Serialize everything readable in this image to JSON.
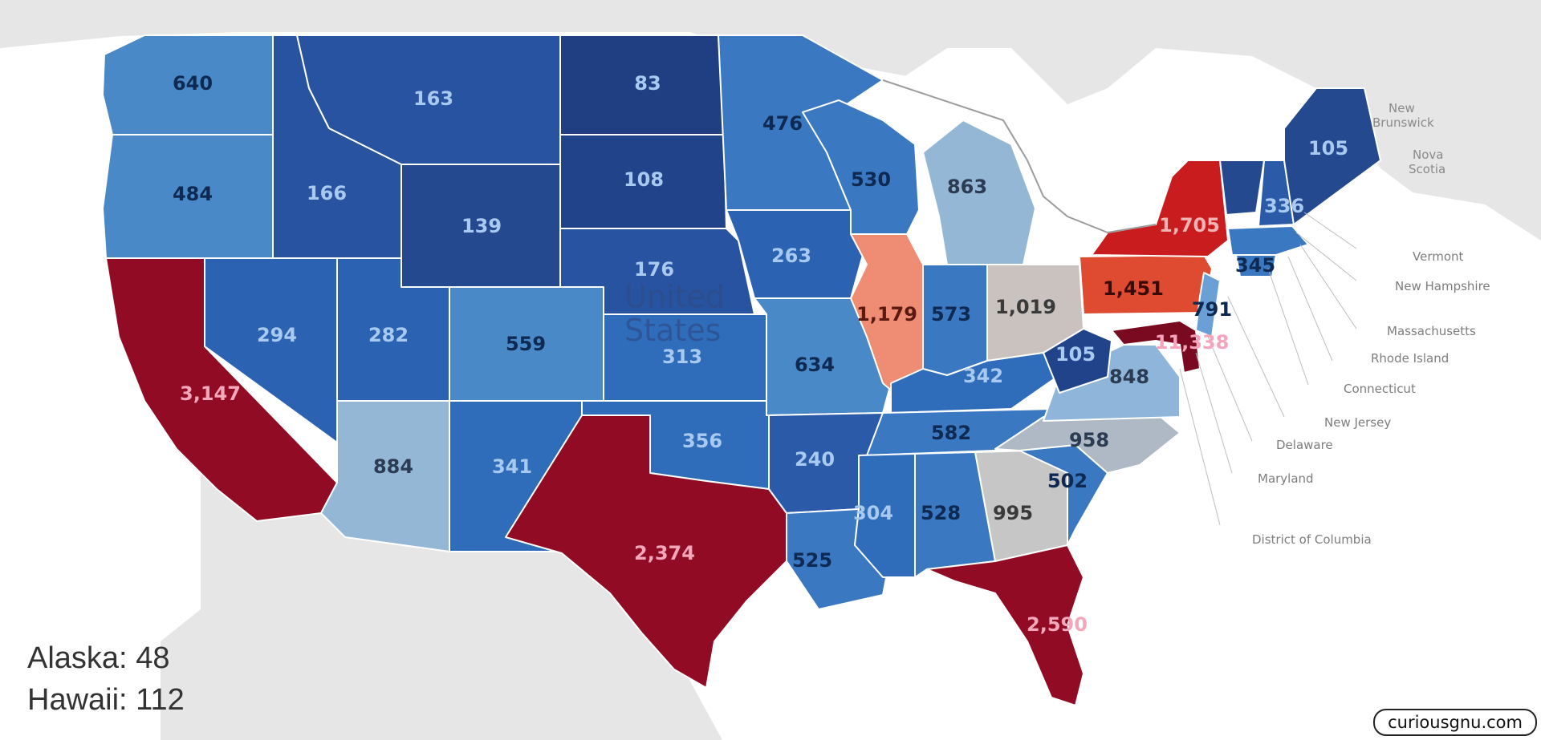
{
  "title": "",
  "map": {
    "country_label": [
      "United",
      "States"
    ],
    "background_labels": [
      {
        "id": "new-brunswick",
        "lines": [
          "New",
          "Brunswick"
        ]
      },
      {
        "id": "nova-scotia",
        "lines": [
          "Nova",
          "Scotia"
        ]
      }
    ],
    "callout_labels": [
      "Vermont",
      "New Hampshire",
      "Massachusetts",
      "Rhode Island",
      "Connecticut",
      "New Jersey",
      "Delaware",
      "Maryland",
      "District of Columbia"
    ]
  },
  "states": [
    {
      "id": "wa",
      "value": 640,
      "label": "640",
      "fill": "#4a89c7",
      "text": "#0e2a52"
    },
    {
      "id": "or",
      "value": 484,
      "label": "484",
      "fill": "#4a89c7",
      "text": "#0e2a52"
    },
    {
      "id": "ca",
      "value": 3147,
      "label": "3,147",
      "fill": "#920b24",
      "text": "#f2a7ba"
    },
    {
      "id": "id",
      "value": 166,
      "label": "166",
      "fill": "#2853a0",
      "text": "#a8c9f0"
    },
    {
      "id": "mt",
      "value": 163,
      "label": "163",
      "fill": "#2853a0",
      "text": "#a8c9f0"
    },
    {
      "id": "nv",
      "value": 294,
      "label": "294",
      "fill": "#2b63b2",
      "text": "#a8c9f0"
    },
    {
      "id": "ut",
      "value": 282,
      "label": "282",
      "fill": "#2b63b2",
      "text": "#a8c9f0"
    },
    {
      "id": "az",
      "value": 884,
      "label": "884",
      "fill": "#94b7d6",
      "text": "#2b3c52"
    },
    {
      "id": "wy",
      "value": 139,
      "label": "139",
      "fill": "#24498f",
      "text": "#a8c9f0"
    },
    {
      "id": "co",
      "value": 559,
      "label": "559",
      "fill": "#4a89c7",
      "text": "#0e2a52"
    },
    {
      "id": "nm",
      "value": 341,
      "label": "341",
      "fill": "#2f6dba",
      "text": "#a8c9f0"
    },
    {
      "id": "nd",
      "value": 83,
      "label": "83",
      "fill": "#1f3f82",
      "text": "#a8c9f0"
    },
    {
      "id": "sd",
      "value": 108,
      "label": "108",
      "fill": "#21438a",
      "text": "#a8c9f0"
    },
    {
      "id": "ne",
      "value": 176,
      "label": "176",
      "fill": "#2853a0",
      "text": "#a8c9f0"
    },
    {
      "id": "ks",
      "value": 313,
      "label": "313",
      "fill": "#2f6dba",
      "text": "#a8c9f0"
    },
    {
      "id": "ok",
      "value": 356,
      "label": "356",
      "fill": "#2f6dba",
      "text": "#a8c9f0"
    },
    {
      "id": "tx",
      "value": 2374,
      "label": "2,374",
      "fill": "#920b24",
      "text": "#f2a7ba"
    },
    {
      "id": "mn",
      "value": 476,
      "label": "476",
      "fill": "#3a78c2",
      "text": "#0e2a52"
    },
    {
      "id": "ia",
      "value": 263,
      "label": "263",
      "fill": "#2b63b2",
      "text": "#a8c9f0"
    },
    {
      "id": "mo",
      "value": 634,
      "label": "634",
      "fill": "#4a89c7",
      "text": "#0e2a52"
    },
    {
      "id": "ar",
      "value": 240,
      "label": "240",
      "fill": "#2b5aa8",
      "text": "#a8c9f0"
    },
    {
      "id": "la",
      "value": 525,
      "label": "525",
      "fill": "#3a78c2",
      "text": "#0e2a52"
    },
    {
      "id": "wi",
      "value": 530,
      "label": "530",
      "fill": "#3a78c2",
      "text": "#0e2a52"
    },
    {
      "id": "il",
      "value": 1179,
      "label": "1,179",
      "fill": "#ee8c74",
      "text": "#5a1a10"
    },
    {
      "id": "mi",
      "value": 863,
      "label": "863",
      "fill": "#94b7d6",
      "text": "#2b3c52"
    },
    {
      "id": "in",
      "value": 573,
      "label": "573",
      "fill": "#3a78c2",
      "text": "#0e2a52"
    },
    {
      "id": "oh",
      "value": 1019,
      "label": "1,019",
      "fill": "#c9c2bf",
      "text": "#3a3a3a"
    },
    {
      "id": "ky",
      "value": 342,
      "label": "342",
      "fill": "#2f6dba",
      "text": "#a8c9f0"
    },
    {
      "id": "tn",
      "value": 582,
      "label": "582",
      "fill": "#3a78c2",
      "text": "#0e2a52"
    },
    {
      "id": "ms",
      "value": 304,
      "label": "304",
      "fill": "#2f6dba",
      "text": "#a8c9f0"
    },
    {
      "id": "al",
      "value": 528,
      "label": "528",
      "fill": "#3a78c2",
      "text": "#0e2a52"
    },
    {
      "id": "ga",
      "value": 995,
      "label": "995",
      "fill": "#c6c6c6",
      "text": "#3a3a3a"
    },
    {
      "id": "fl",
      "value": 2590,
      "label": "2,590",
      "fill": "#920b24",
      "text": "#f2a7ba"
    },
    {
      "id": "sc",
      "value": 502,
      "label": "502",
      "fill": "#3a78c2",
      "text": "#0e2a52"
    },
    {
      "id": "nc",
      "value": 958,
      "label": "958",
      "fill": "#aeb9c5",
      "text": "#2b3c52"
    },
    {
      "id": "va",
      "value": 848,
      "label": "848",
      "fill": "#8fb5da",
      "text": "#2b3c52"
    },
    {
      "id": "wv",
      "value": 105,
      "label": "105",
      "fill": "#21438a",
      "text": "#a8c9f0"
    },
    {
      "id": "pa",
      "value": 1451,
      "label": "1,451",
      "fill": "#de4b30",
      "text": "#3a0a05"
    },
    {
      "id": "ny",
      "value": 1705,
      "label": "1,705",
      "fill": "#c91c1f",
      "text": "#f4b3b3"
    },
    {
      "id": "nj",
      "value": 791,
      "label": "791",
      "fill": "#6aa0d6",
      "text": "#0e2a52"
    },
    {
      "id": "md",
      "value": 11338,
      "label": "11,338",
      "fill": "#7a0a20",
      "text": "#f7a3bb"
    },
    {
      "id": "vt",
      "value": null,
      "label": "",
      "fill": "#24498f",
      "text": "#a8c9f0"
    },
    {
      "id": "nh",
      "value": 336,
      "label": "336",
      "fill": "#2b5aa8",
      "text": "#a8c9f0"
    },
    {
      "id": "me",
      "value": 105,
      "label": "105",
      "fill": "#24498f",
      "text": "#a8c9f0"
    },
    {
      "id": "ma",
      "value": 345,
      "label": "345",
      "fill": "#3a78c2",
      "text": "#0e2a52"
    },
    {
      "id": "ct",
      "value": null,
      "label": "",
      "fill": "#3a78c2",
      "text": "#0e2a52"
    }
  ],
  "extras": {
    "alaska_label": "Alaska:",
    "alaska_value": "48",
    "hawaii_label": "Hawaii:",
    "hawaii_value": "112"
  },
  "credit": "curiousgnu.com"
}
